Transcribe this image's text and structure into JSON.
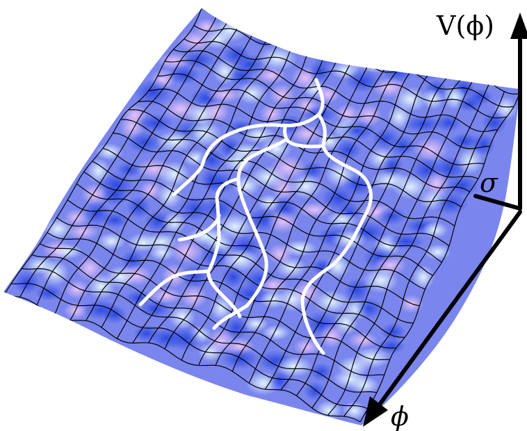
{
  "axes": {
    "vertical_label": "V(ϕ)",
    "depth_label": "σ",
    "horizontal_label": "ϕ"
  },
  "colors": {
    "surface_base": "#7a86ee",
    "surface_dark": "#3f58e6",
    "surface_light": "#c9e4ff",
    "surface_pink": "#d9b0f2",
    "grid_line": "#000000",
    "path": "#ffffff",
    "axis": "#000000"
  }
}
